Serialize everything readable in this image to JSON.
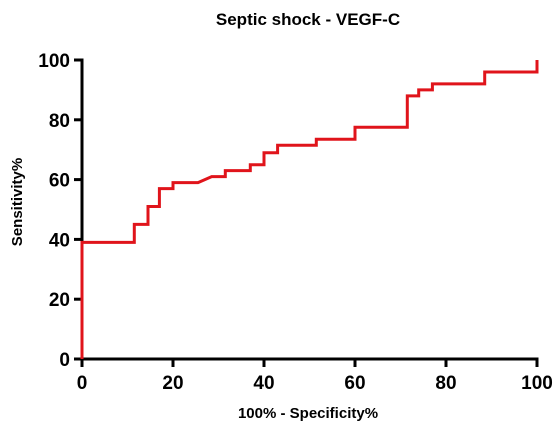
{
  "chart_data": {
    "type": "line",
    "title": "Septic shock - VEGF-C",
    "xlabel": "100% - Specificity%",
    "ylabel": "Sensitivity%",
    "xlim": [
      0,
      100
    ],
    "ylim": [
      0,
      100
    ],
    "x_ticks": [
      0,
      20,
      40,
      60,
      80,
      100
    ],
    "y_ticks": [
      0,
      20,
      40,
      60,
      80,
      100
    ],
    "grid": false,
    "series": [
      {
        "color": "#e0141b",
        "step": true,
        "points": [
          [
            0,
            0
          ],
          [
            0,
            39
          ],
          [
            11.5,
            39
          ],
          [
            11.5,
            45
          ],
          [
            14.5,
            45
          ],
          [
            14.5,
            51
          ],
          [
            17,
            51
          ],
          [
            17,
            57
          ],
          [
            20,
            57
          ],
          [
            20,
            59
          ],
          [
            25.5,
            59
          ],
          [
            28.5,
            61
          ],
          [
            31.5,
            61
          ],
          [
            31.5,
            63
          ],
          [
            37,
            63
          ],
          [
            37,
            65
          ],
          [
            40,
            65
          ],
          [
            40,
            69
          ],
          [
            43,
            69
          ],
          [
            43,
            71.5
          ],
          [
            51.5,
            71.5
          ],
          [
            51.5,
            73.5
          ],
          [
            60,
            73.5
          ],
          [
            60,
            77.5
          ],
          [
            71.5,
            77.5
          ],
          [
            71.5,
            88
          ],
          [
            74,
            88
          ],
          [
            74,
            90
          ],
          [
            77,
            90
          ],
          [
            77,
            92
          ],
          [
            88.5,
            92
          ],
          [
            88.5,
            96
          ],
          [
            100,
            96
          ],
          [
            100,
            100
          ]
        ]
      }
    ]
  }
}
